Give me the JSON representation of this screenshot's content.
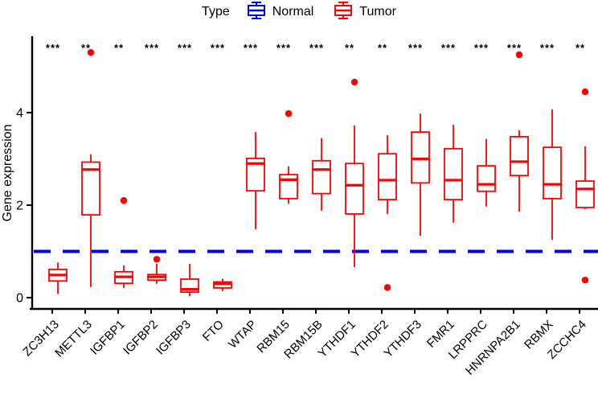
{
  "chart_data": {
    "type": "boxplot",
    "ylabel": "Gene expression",
    "yticks": [
      0,
      2,
      4
    ],
    "ylim": [
      0,
      5.65
    ],
    "grid": false,
    "legend": {
      "title": "Type",
      "position": "top",
      "entries": [
        {
          "label": "Normal",
          "color": "#0000EE"
        },
        {
          "label": "Tumor",
          "color": "#FF0000"
        }
      ]
    },
    "reference_line": {
      "y": 1,
      "color": "#0000EE",
      "style": "dashed"
    },
    "colors": {
      "box": "#FF0000",
      "axis": "#000000",
      "significance": "#000000"
    },
    "categories": [
      "ZC3H13",
      "METTL3",
      "IGFBP1",
      "IGFBP2",
      "IGFBP3",
      "FTO",
      "WTAP",
      "RBM15",
      "RBM15B",
      "YTHDF1",
      "YTHDF2",
      "YTHDF3",
      "FMR1",
      "LRPPRC",
      "HNRNPA2B1",
      "RBMX",
      "ZCCHC4"
    ],
    "significance": [
      "***",
      "**",
      "**",
      "***",
      "***",
      "***",
      "***",
      "***",
      "***",
      "**",
      "**",
      "***",
      "***",
      "***",
      "***",
      "***",
      "**"
    ],
    "series": [
      {
        "name": "Tumor",
        "boxes": [
          {
            "gene": "ZC3H13",
            "low": 0.08,
            "q1": 0.36,
            "median": 0.49,
            "q3": 0.61,
            "high": 0.76,
            "outliers": []
          },
          {
            "gene": "METTL3",
            "low": 0.23,
            "q1": 1.79,
            "median": 2.77,
            "q3": 2.93,
            "high": 3.1,
            "outliers": [
              5.3
            ]
          },
          {
            "gene": "IGFBP1",
            "low": 0.21,
            "q1": 0.31,
            "median": 0.45,
            "q3": 0.56,
            "high": 0.7,
            "outliers": [
              2.1
            ]
          },
          {
            "gene": "IGFBP2",
            "low": 0.3,
            "q1": 0.38,
            "median": 0.45,
            "q3": 0.5,
            "high": 0.73,
            "outliers": [
              0.83
            ]
          },
          {
            "gene": "IGFBP3",
            "low": 0.03,
            "q1": 0.12,
            "median": 0.18,
            "q3": 0.4,
            "high": 0.73,
            "outliers": []
          },
          {
            "gene": "FTO",
            "low": 0.14,
            "q1": 0.21,
            "median": 0.3,
            "q3": 0.34,
            "high": 0.41,
            "outliers": []
          },
          {
            "gene": "WTAP",
            "low": 1.48,
            "q1": 2.31,
            "median": 2.9,
            "q3": 3.01,
            "high": 3.58,
            "outliers": []
          },
          {
            "gene": "RBM15",
            "low": 2.03,
            "q1": 2.14,
            "median": 2.55,
            "q3": 2.66,
            "high": 2.84,
            "outliers": [
              3.98
            ]
          },
          {
            "gene": "RBM15B",
            "low": 1.88,
            "q1": 2.25,
            "median": 2.77,
            "q3": 2.96,
            "high": 3.45,
            "outliers": []
          },
          {
            "gene": "YTHDF1",
            "low": 0.66,
            "q1": 1.81,
            "median": 2.43,
            "q3": 2.9,
            "high": 3.72,
            "outliers": [
              4.66
            ]
          },
          {
            "gene": "YTHDF2",
            "low": 1.81,
            "q1": 2.12,
            "median": 2.54,
            "q3": 3.11,
            "high": 3.51,
            "outliers": [
              0.22
            ]
          },
          {
            "gene": "YTHDF3",
            "low": 1.34,
            "q1": 2.48,
            "median": 3.0,
            "q3": 3.58,
            "high": 3.98,
            "outliers": []
          },
          {
            "gene": "FMR1",
            "low": 1.62,
            "q1": 2.12,
            "median": 2.54,
            "q3": 3.22,
            "high": 3.74,
            "outliers": []
          },
          {
            "gene": "LRPPRC",
            "low": 1.97,
            "q1": 2.3,
            "median": 2.45,
            "q3": 2.85,
            "high": 3.43,
            "outliers": []
          },
          {
            "gene": "HNRNPA2B1",
            "low": 1.86,
            "q1": 2.64,
            "median": 2.94,
            "q3": 3.48,
            "high": 3.62,
            "outliers": [
              5.25
            ]
          },
          {
            "gene": "RBMX",
            "low": 1.25,
            "q1": 2.14,
            "median": 2.45,
            "q3": 3.25,
            "high": 4.07,
            "outliers": []
          },
          {
            "gene": "ZCCHC4",
            "low": 1.91,
            "q1": 1.95,
            "median": 2.35,
            "q3": 2.52,
            "high": 3.27,
            "outliers": [
              4.45,
              0.38
            ]
          }
        ]
      }
    ]
  }
}
